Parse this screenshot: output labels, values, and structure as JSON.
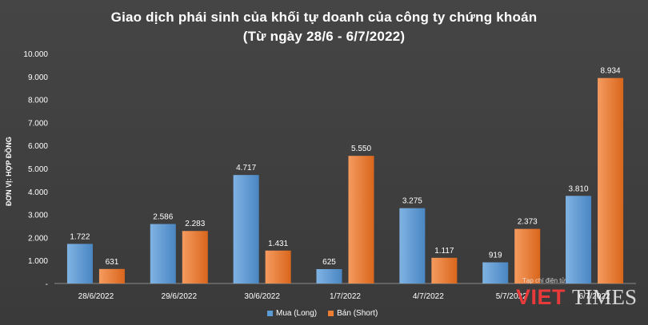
{
  "chart_data": {
    "type": "bar",
    "title": "Giao dịch phái sinh của khối tự doanh của công ty chứng khoán",
    "subtitle": "(Từ ngày 28/6 - 6/7/2022)",
    "ylabel": "ĐƠN VỊ: HỢP ĐỒNG",
    "xlabel": "",
    "ylim": [
      0,
      10000
    ],
    "yticks": [
      0,
      1000,
      2000,
      3000,
      4000,
      5000,
      6000,
      7000,
      8000,
      9000,
      10000
    ],
    "ytick_labels": [
      "-",
      "1.000",
      "2.000",
      "3.000",
      "4.000",
      "5.000",
      "6.000",
      "7.000",
      "8.000",
      "9.000",
      "10.000"
    ],
    "categories": [
      "28/6/2022",
      "29/6/2022",
      "30/6/2022",
      "1/7/2022",
      "4/7/2022",
      "5/7/2022",
      "6/7/2022"
    ],
    "series": [
      {
        "name": "Mua (Long)",
        "color": "#5b9bd5",
        "values": [
          1722,
          2586,
          4717,
          625,
          3275,
          919,
          3810
        ],
        "labels": [
          "1.722",
          "2.586",
          "4.717",
          "625",
          "3.275",
          "919",
          "3.810"
        ]
      },
      {
        "name": "Bán (Short)",
        "color": "#ed7d31",
        "values": [
          631,
          2283,
          1431,
          5550,
          1117,
          2373,
          8934
        ],
        "labels": [
          "631",
          "2.283",
          "1.431",
          "5.550",
          "1.117",
          "2.373",
          "8.934"
        ]
      }
    ],
    "grid": false,
    "legend_position": "bottom"
  },
  "watermark": {
    "tagline": "Tạp chí điện tử",
    "brand_viet": "VIET",
    "brand_times": "TIMES"
  }
}
